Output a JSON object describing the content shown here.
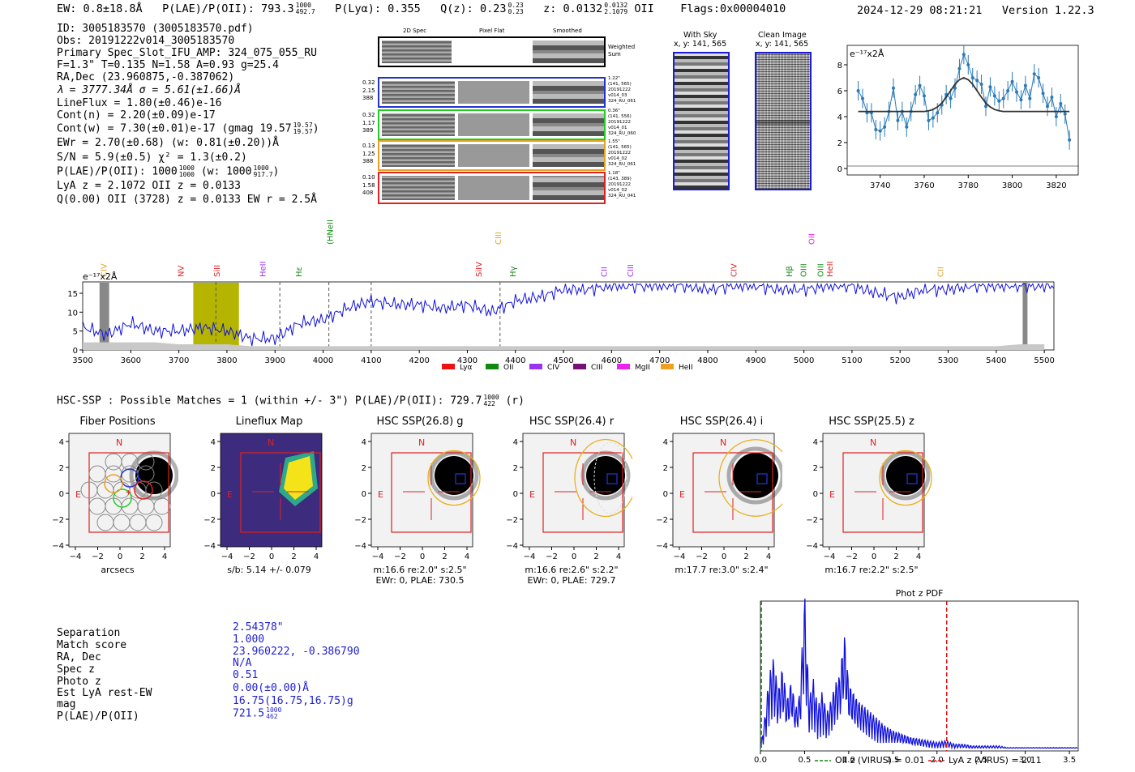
{
  "header": {
    "ew": "EW: 0.8±18.8Å",
    "plae_label": "P(LAE)/P(OII): 793.3",
    "plae_hi": "1000",
    "plae_lo": "492.7",
    "plya": "P(Lyα): 0.355",
    "qz_label": "Q(z): 0.23",
    "qz_hi": "0.23",
    "qz_lo": "0.23",
    "z_label": "z: 0.0132",
    "z_hi": "0.0132",
    "z_lo": "2.1079",
    "z_line": "OII",
    "flags": "Flags:0x00004010",
    "datetime": "2024-12-29 08:21:21",
    "version": "Version 1.22.3"
  },
  "info": {
    "id": "ID: 3005183570 (3005183570.pdf)",
    "obs": "Obs: 20191222v014_3005183570",
    "primary": "Primary Spec_Slot_IFU_AMP: 324_075_055_RU",
    "fiber": "F=1.3\"  T=0.135  N=1.58  A=0.93  g=25.4",
    "radec": "RA,Dec (23.960875,-0.387062)",
    "lambda": "λ = 3777.34Å  σ = 5.61(±1.66)Å",
    "lineflux": "LineFlux = 1.80(±0.46)e-16",
    "contn": "Cont(n) = 2.20(±0.09)e-17",
    "contw": "Cont(w) = 7.30(±0.01)e-17 (gmag 19.57",
    "contw_hi": "19.57",
    "contw_lo": "19.57",
    "contw_end": ")",
    "ewr": "EWr = 2.70(±0.68) (w: 0.81(±0.20))Å",
    "sn": "S/N = 5.9(±0.5)  χ² = 1.3(±0.2)",
    "plae": "P(LAE)/P(OII): 1000",
    "plae_hi": "1000",
    "plae_lo": "1000",
    "plae_w": "(w: 1000",
    "plae_w_hi": "1000",
    "plae_w_lo": "917.7",
    "plae_w_end": ")",
    "lya": "LyA z = 2.1072  OII z = 0.0133",
    "q": "Q(0.00) OII (3728) z = 0.0133  EW r = 2.5Å"
  },
  "spec2d": {
    "headers": [
      "2D Spec",
      "Pixel Flat",
      "Smoothed"
    ],
    "weighted_sum": "Weighted\nSum",
    "rows": [
      {
        "left": "0.32\n2.15\n388",
        "right": "1.22\"\n(141, 565)\n20191222\nv014_03\n324_RU_061",
        "color": "#2233cc"
      },
      {
        "left": "0.32\n1.17\n389",
        "right": "0.36\"\n(141, 556)\n20191222\nv014_01\n324_RU_060",
        "color": "#22cc22"
      },
      {
        "left": "0.13\n1.25\n388",
        "right": "1.55\"\n(141, 565)\n20191222\nv014_02\n324_RU_061",
        "color": "#e8a020"
      },
      {
        "left": "0.10\n1.58\n408",
        "right": "1.18\"\n(143, 389)\n20191222\nv014_02\n324_RU_041",
        "color": "#dd2222"
      }
    ]
  },
  "cutouts": {
    "with_sky": "With Sky",
    "with_sky_xy": "x, y: 141, 565",
    "clean": "Clean Image",
    "clean_xy": "x, y: 141, 565"
  },
  "zoom": {
    "ylabel": "e⁻¹⁷x2Å",
    "xticks": [
      "3740",
      "3760",
      "3780",
      "3800",
      "3820"
    ],
    "yticks": [
      "0",
      "2",
      "4",
      "6",
      "8"
    ]
  },
  "full_spec": {
    "ylabel": "e⁻¹⁷x2Å",
    "xticks": [
      "3500",
      "3600",
      "3700",
      "3800",
      "3900",
      "4000",
      "4100",
      "4200",
      "4300",
      "4400",
      "4500",
      "4600",
      "4700",
      "4800",
      "4900",
      "5000",
      "5100",
      "5200",
      "5300",
      "5400",
      "5500"
    ],
    "yticks": [
      "0",
      "5",
      "10",
      "15"
    ],
    "lines": [
      {
        "label": "CIV",
        "color": "#e8a020"
      },
      {
        "label": "NV",
        "color": "#dd2222"
      },
      {
        "label": "SiII",
        "color": "#dd2222"
      },
      {
        "label": "HeII",
        "color": "#9933ee"
      },
      {
        "label": "Hε",
        "color": "#118811"
      },
      {
        "label": "(HNeIII",
        "color": "#118811"
      },
      {
        "label": "SiIV",
        "color": "#dd2222"
      },
      {
        "label": "CIII",
        "color": "#e8a020"
      },
      {
        "label": "Hγ",
        "color": "#118811"
      },
      {
        "label": "CII",
        "color": "#9933ee"
      },
      {
        "label": "CIII",
        "color": "#9933ee"
      },
      {
        "label": "CIV",
        "color": "#dd2222"
      },
      {
        "label": "Hβ",
        "color": "#118811"
      },
      {
        "label": "OIII",
        "color": "#118811"
      },
      {
        "label": "OII",
        "color": "#ee22ee"
      },
      {
        "label": "OIII",
        "color": "#118811"
      },
      {
        "label": "HeII",
        "color": "#dd2222"
      },
      {
        "label": "CII",
        "color": "#e8a020"
      }
    ],
    "legend": [
      {
        "label": "Lyα",
        "color": "#ee1111"
      },
      {
        "label": "OII",
        "color": "#118811"
      },
      {
        "label": "CIV",
        "color": "#9933ee"
      },
      {
        "label": "CIII",
        "color": "#771177"
      },
      {
        "label": "MgII",
        "color": "#ee22ee"
      },
      {
        "label": "HeII",
        "color": "#f0a020"
      }
    ]
  },
  "hsc": {
    "title": "HSC-SSP : Possible Matches = 1 (within +/- 3\")  P(LAE)/P(OII): 729.7",
    "title_hi": "1000",
    "title_lo": "422",
    "title_end": "(r)",
    "panels": [
      {
        "title": "Fiber Positions",
        "caption1": "arcsecs",
        "caption2": ""
      },
      {
        "title": "Lineflux Map",
        "caption1": "s/b: 5.14 +/- 0.079",
        "caption2": ""
      },
      {
        "title": "HSC SSP(26.8) g",
        "caption1": "m:16.6  re:2.0\"  s:2.5\"",
        "caption2": "EWr: 0, PLAE: 730.5"
      },
      {
        "title": "HSC SSP(26.4) r",
        "caption1": "m:16.6  re:2.6\"  s:2.2\"",
        "caption2": "EWr: 0, PLAE: 729.7"
      },
      {
        "title": "HSC SSP(26.4) i",
        "caption1": "m:17.7  re:3.0\"  s:2.4\"",
        "caption2": ""
      },
      {
        "title": "HSC SSP(25.5) z",
        "caption1": "m:16.7  re:2.2\"  s:2.5\"",
        "caption2": ""
      }
    ],
    "north": "N",
    "east": "E",
    "ticks": [
      "−4",
      "−2",
      "0",
      "2",
      "4"
    ]
  },
  "match": {
    "labels": [
      "Separation",
      "Match score",
      "RA, Dec",
      "Spec z",
      "Photo z",
      "Est LyA rest-EW",
      "mag",
      "P(LAE)/P(OII)"
    ],
    "values": [
      "2.54378\"",
      "1.000",
      "23.960222, -0.386790",
      "N/A",
      "0.51",
      "0.00(±0.00)Å",
      "16.75(16.75,16.75)g",
      "721.5"
    ],
    "plae_hi": "1000",
    "plae_lo": "462"
  },
  "photz": {
    "title": "Phot z PDF",
    "xticks": [
      "0.0",
      "0.5",
      "1.0",
      "1.5",
      "2.0",
      "2.5",
      "3.0",
      "3.5"
    ],
    "legend_oii": "OII z (VIRUS) = 0.01",
    "legend_lya": "LyA z (VIRUS) = 2.11"
  },
  "chart_data": [
    {
      "type": "line",
      "title": "Line fit zoom",
      "xlabel": "Wavelength (Å)",
      "ylabel": "e⁻¹⁷x2Å",
      "xlim": [
        3725,
        3830
      ],
      "ylim": [
        -0.5,
        9.5
      ],
      "x": [
        3730,
        3732,
        3734,
        3736,
        3738,
        3740,
        3742,
        3744,
        3746,
        3748,
        3750,
        3752,
        3754,
        3756,
        3758,
        3760,
        3762,
        3764,
        3766,
        3768,
        3770,
        3772,
        3774,
        3776,
        3778,
        3780,
        3782,
        3784,
        3786,
        3788,
        3790,
        3792,
        3794,
        3796,
        3798,
        3800,
        3802,
        3804,
        3806,
        3808,
        3810,
        3812,
        3814,
        3816,
        3818,
        3820,
        3822,
        3824,
        3826
      ],
      "series": [
        {
          "name": "data",
          "values": [
            6.0,
            5.4,
            4.3,
            4.3,
            3.0,
            2.9,
            3.2,
            4.4,
            6.2,
            3.7,
            4.4,
            3.2,
            4.4,
            5.7,
            6.4,
            5.6,
            3.7,
            3.9,
            4.3,
            4.9,
            5.7,
            5.4,
            6.2,
            7.7,
            8.8,
            8.0,
            7.0,
            6.8,
            6.5,
            4.8,
            6.3,
            5.6,
            5.2,
            5.4,
            6.0,
            6.7,
            5.9,
            5.3,
            6.4,
            5.4,
            7.3,
            7.0,
            5.8,
            4.8,
            5.5,
            4.0,
            5.0,
            4.2,
            2.2
          ]
        },
        {
          "name": "fit",
          "values": [
            4.4,
            4.4,
            4.4,
            4.4,
            4.4,
            4.4,
            4.4,
            4.4,
            4.4,
            4.4,
            4.4,
            4.4,
            4.4,
            4.4,
            4.4,
            4.4,
            4.45,
            4.55,
            4.75,
            5.05,
            5.5,
            6.0,
            6.5,
            6.85,
            7.0,
            6.85,
            6.5,
            6.0,
            5.5,
            5.05,
            4.75,
            4.55,
            4.45,
            4.4,
            4.4,
            4.4,
            4.4,
            4.4,
            4.4,
            4.4,
            4.4,
            4.4,
            4.4,
            4.4,
            4.4,
            4.4,
            4.4,
            4.4,
            4.4
          ]
        }
      ]
    },
    {
      "type": "line",
      "title": "Full spectrum",
      "xlabel": "Wavelength (Å)",
      "ylabel": "e⁻¹⁷x2Å",
      "xlim": [
        3500,
        5520
      ],
      "ylim": [
        0,
        18
      ],
      "x": [
        3500,
        3550,
        3600,
        3650,
        3700,
        3750,
        3800,
        3850,
        3900,
        3950,
        4000,
        4050,
        4100,
        4150,
        4200,
        4250,
        4300,
        4350,
        4400,
        4450,
        4500,
        4550,
        4600,
        4650,
        4700,
        4750,
        4800,
        4850,
        4900,
        4950,
        5000,
        5050,
        5100,
        5150,
        5200,
        5250,
        5300,
        5350,
        5400,
        5450,
        5500
      ],
      "series": [
        {
          "name": "flux",
          "values": [
            6,
            4,
            7,
            5,
            5,
            6,
            5,
            3,
            3,
            7,
            8,
            11,
            13,
            12,
            12,
            11,
            12,
            10,
            13,
            14,
            16,
            16,
            17,
            17,
            17,
            17,
            16,
            17,
            17,
            16,
            16,
            17,
            17,
            15,
            14,
            16,
            16,
            17,
            17,
            17,
            17
          ]
        },
        {
          "name": "noise",
          "values": [
            2,
            2,
            2,
            2,
            1.5,
            1.5,
            1.5,
            1,
            1,
            1,
            1,
            1,
            1,
            1,
            1,
            1,
            1,
            1,
            1,
            1,
            1,
            1,
            1,
            1,
            1,
            1,
            1,
            1,
            1,
            1,
            1,
            1,
            1,
            1,
            1,
            1,
            1,
            1,
            1,
            1.5,
            1.5
          ]
        }
      ]
    },
    {
      "type": "line",
      "title": "Phot z PDF",
      "xlabel": "z",
      "ylabel": "",
      "xlim": [
        0,
        3.6
      ],
      "ylim": [
        0,
        1
      ],
      "x": [
        0.0,
        0.05,
        0.1,
        0.15,
        0.2,
        0.25,
        0.3,
        0.35,
        0.4,
        0.45,
        0.5,
        0.55,
        0.6,
        0.65,
        0.7,
        0.75,
        0.8,
        0.85,
        0.9,
        0.95,
        1.0,
        1.1,
        1.2,
        1.3,
        1.4,
        1.5,
        1.6,
        1.7,
        1.8,
        1.9,
        2.0,
        2.1,
        2.2,
        2.3,
        2.4,
        2.5,
        2.6,
        2.7,
        2.8,
        2.9,
        3.0,
        3.2,
        3.4,
        3.6
      ],
      "series": [
        {
          "name": "pdf",
          "values": [
            0.02,
            0.2,
            0.45,
            0.55,
            0.35,
            0.5,
            0.3,
            0.42,
            0.25,
            0.35,
            0.95,
            0.3,
            0.42,
            0.25,
            0.35,
            0.22,
            0.3,
            0.4,
            0.45,
            0.7,
            0.4,
            0.3,
            0.25,
            0.2,
            0.15,
            0.12,
            0.1,
            0.08,
            0.07,
            0.06,
            0.05,
            0.06,
            0.04,
            0.04,
            0.03,
            0.03,
            0.03,
            0.03,
            0.02,
            0.02,
            0.02,
            0.02,
            0.02,
            0.02
          ]
        }
      ],
      "vlines": [
        {
          "x": 0.01,
          "label": "OII z (VIRUS) = 0.01"
        },
        {
          "x": 2.11,
          "label": "LyA z (VIRUS) = 2.11"
        }
      ]
    }
  ]
}
